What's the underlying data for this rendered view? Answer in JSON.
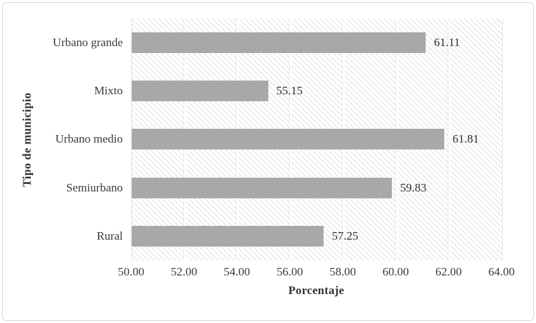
{
  "chart_data": {
    "type": "bar",
    "orientation": "horizontal",
    "title": "",
    "xlabel": "Porcentaje",
    "ylabel": "Tipo de municipio",
    "categories": [
      "Urbano grande",
      "Mixto",
      "Urbano medio",
      "Semiurbano",
      "Rural"
    ],
    "values": [
      61.11,
      55.15,
      61.81,
      59.83,
      57.25
    ],
    "value_labels": [
      "61.11",
      "55.15",
      "61.81",
      "59.83",
      "57.25"
    ],
    "xlim": [
      50,
      64
    ],
    "xticks": [
      {
        "value": 50,
        "label": "50.00"
      },
      {
        "value": 52,
        "label": "52.00"
      },
      {
        "value": 54,
        "label": "54.00"
      },
      {
        "value": 56,
        "label": "56.00"
      },
      {
        "value": 58,
        "label": "58.00"
      },
      {
        "value": 60,
        "label": "60.00"
      },
      {
        "value": 62,
        "label": "62.00"
      },
      {
        "value": 64,
        "label": "64.00"
      }
    ],
    "grid": "vertical-major",
    "legend": "none",
    "bar_color": "#a8a8a8",
    "plot_background": "light-diagonal-hatch",
    "gridline_color": "#ffffff",
    "frame_border_color": "#d6d6d6"
  }
}
